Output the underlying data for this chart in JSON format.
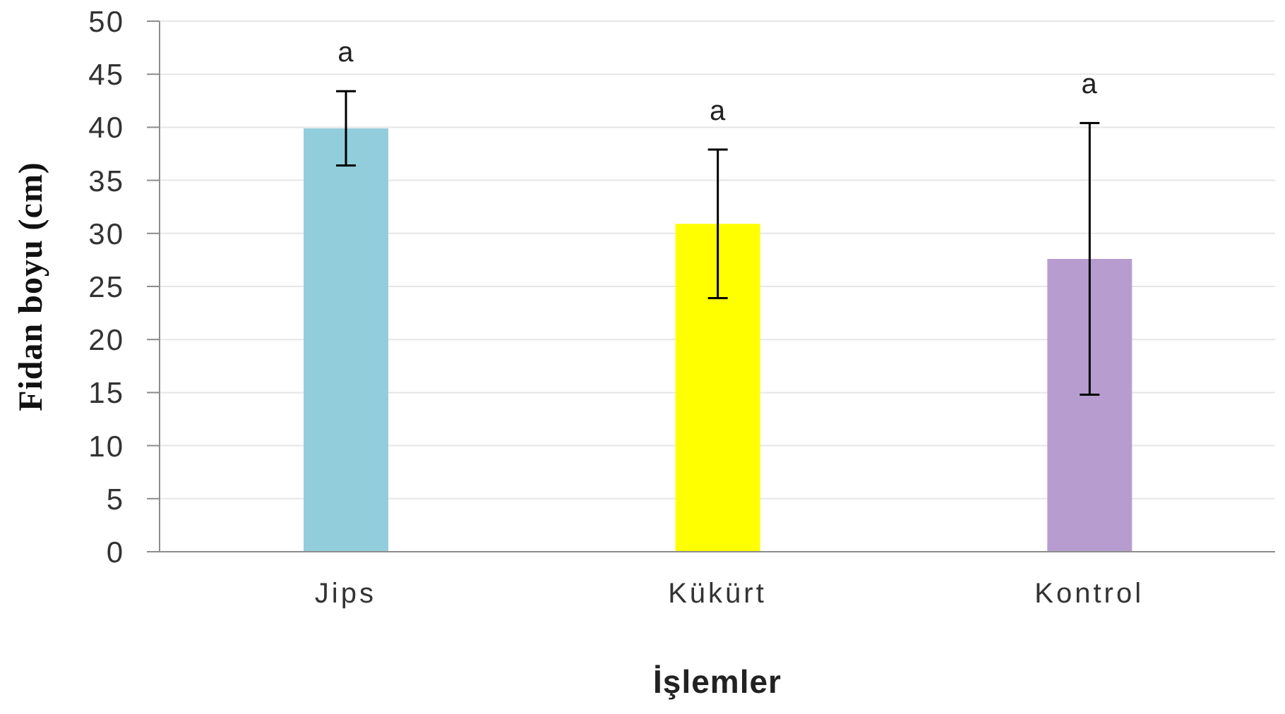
{
  "chart_data": {
    "type": "bar",
    "xlabel": "İşlemler",
    "ylabel": "Fidan boyu (cm)",
    "categories": [
      "Jips",
      "Kükürt",
      "Kontrol"
    ],
    "values": [
      39.9,
      30.9,
      27.6
    ],
    "errors": [
      3.5,
      7,
      12.8
    ],
    "colors": [
      "#92cddc",
      "#ffff00",
      "#b79dcf"
    ],
    "ylim": [
      0,
      50
    ],
    "yticks": [
      0,
      5,
      10,
      15,
      20,
      25,
      30,
      35,
      40,
      45,
      50
    ],
    "grid": "y",
    "annotations": [
      "a",
      "a",
      "a"
    ]
  }
}
